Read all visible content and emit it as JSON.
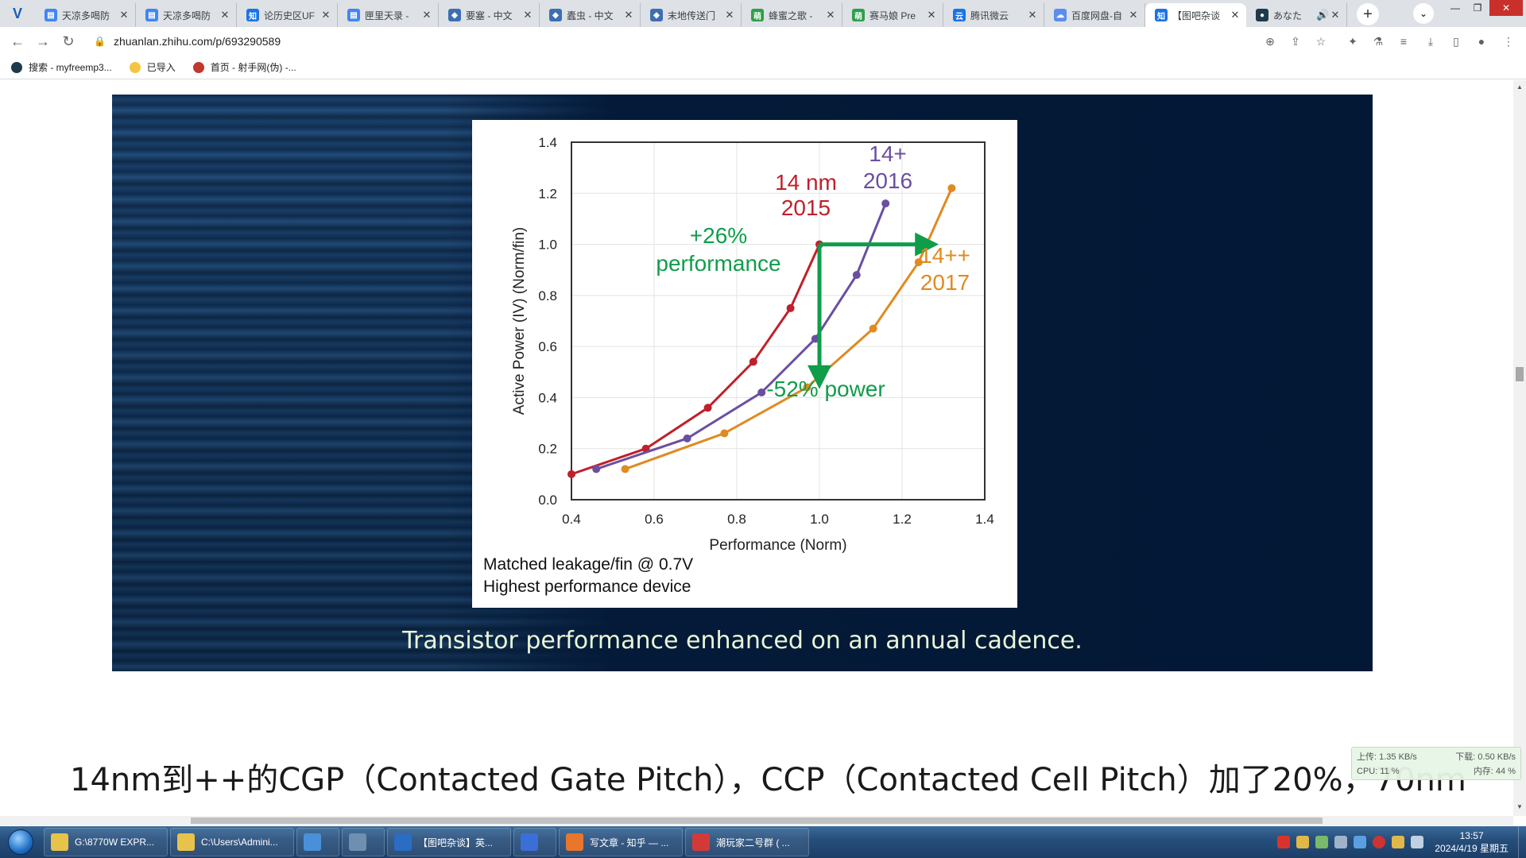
{
  "browser": {
    "tabs": [
      {
        "title": "天凉多喝防",
        "favicon_color": "#4285f4",
        "favicon_char": "▤"
      },
      {
        "title": "天凉多喝防",
        "favicon_color": "#4285f4",
        "favicon_char": "▤"
      },
      {
        "title": "论历史区UF",
        "favicon_color": "#1a73e8",
        "favicon_char": "知"
      },
      {
        "title": "匣里天录 -",
        "favicon_color": "#4285f4",
        "favicon_char": "▤"
      },
      {
        "title": "要塞 - 中文",
        "favicon_color": "#3d6fb0",
        "favicon_char": "◆"
      },
      {
        "title": "蠹虫 - 中文",
        "favicon_color": "#3d6fb0",
        "favicon_char": "◆"
      },
      {
        "title": "末地传送门",
        "favicon_color": "#3d6fb0",
        "favicon_char": "◆"
      },
      {
        "title": "蜂蜜之歌 -",
        "favicon_color": "#2e9e4a",
        "favicon_char": "萌"
      },
      {
        "title": "赛马娘 Pre",
        "favicon_color": "#2e9e4a",
        "favicon_char": "萌"
      },
      {
        "title": "腾讯微云",
        "favicon_color": "#1a73e8",
        "favicon_char": "云"
      },
      {
        "title": "百度网盘-自",
        "favicon_color": "#5b8def",
        "favicon_char": "☁"
      },
      {
        "title": "【图吧杂谈",
        "favicon_color": "#1a73e8",
        "favicon_char": "知",
        "active": true
      },
      {
        "title": "あなた",
        "favicon_color": "#1f3a4d",
        "favicon_char": "●",
        "audio": "🔊"
      }
    ],
    "new_tab": "+",
    "url": "zhuanlan.zhihu.com/p/693290589",
    "bookmarks": [
      {
        "label": "搜索 - myfreemp3...",
        "color": "#1f3a4d"
      },
      {
        "label": "已导入",
        "color": "#f4c542"
      },
      {
        "label": "首页 - 射手网(伪) -...",
        "color": "#c0392b"
      }
    ]
  },
  "slide": {
    "caption": "Transistor performance enhanced on an annual cadence.",
    "notes": [
      "Matched leakage/fin @ 0.7V",
      "Highest performance device"
    ],
    "annotations": {
      "perf_gain": [
        "+26%",
        "performance"
      ],
      "power_drop": "-52% power",
      "series_labels": [
        {
          "name": [
            "14 nm",
            "2015"
          ],
          "color": "#c0202a"
        },
        {
          "name": [
            "14+",
            "2016"
          ],
          "color": "#6a4fa0"
        },
        {
          "name": [
            "14++",
            "2017"
          ],
          "color": "#e08a20"
        }
      ],
      "arrow_color": "#0f9d4a"
    }
  },
  "chart_data": {
    "type": "line",
    "xlabel": "Performance (Norm)",
    "ylabel": "Active Power (IV) (Norm/fin)",
    "xlim": [
      0.4,
      1.4
    ],
    "ylim": [
      0.0,
      1.4
    ],
    "xticks": [
      "0.4",
      "0.6",
      "0.8",
      "1.0",
      "1.2",
      "1.4"
    ],
    "yticks": [
      "0.0",
      "0.2",
      "0.4",
      "0.6",
      "0.8",
      "1.0",
      "1.2",
      "1.4"
    ],
    "grid": true,
    "series": [
      {
        "name": "14 nm 2015",
        "color": "#c0202a",
        "x": [
          0.4,
          0.58,
          0.73,
          0.84,
          0.93,
          1.0
        ],
        "y": [
          0.1,
          0.2,
          0.36,
          0.54,
          0.75,
          1.0
        ]
      },
      {
        "name": "14+ 2016",
        "color": "#6a4fa0",
        "x": [
          0.46,
          0.68,
          0.86,
          0.99,
          1.09,
          1.16
        ],
        "y": [
          0.12,
          0.24,
          0.42,
          0.63,
          0.88,
          1.16
        ]
      },
      {
        "name": "14++ 2017",
        "color": "#e08a20",
        "x": [
          0.53,
          0.77,
          0.97,
          1.13,
          1.24,
          1.32
        ],
        "y": [
          0.12,
          0.26,
          0.44,
          0.67,
          0.93,
          1.22
        ]
      }
    ],
    "arrows": [
      {
        "from": [
          1.0,
          1.0
        ],
        "to": [
          1.26,
          1.0
        ]
      },
      {
        "from": [
          1.0,
          1.0
        ],
        "to": [
          1.0,
          0.48
        ]
      }
    ]
  },
  "article": {
    "text": "14nm到++的CGP（Contacted Gate Pitch），CCP（Contacted Cell Pitch）加了20%，70nm"
  },
  "netmon": {
    "upload": "上传: 1.35 KB/s",
    "download": "下载: 0.50 KB/s",
    "cpu": "CPU: 11 %",
    "memory": "内存: 44 %"
  },
  "taskbar": {
    "items": [
      {
        "label": "G:\\8770W EXPR...",
        "color": "#e8c34a"
      },
      {
        "label": "C:\\Users\\Admini...",
        "color": "#e8c34a"
      },
      {
        "label": "",
        "color": "#4a90d9"
      },
      {
        "label": "",
        "color": "#6f8fb0"
      },
      {
        "label": "【图吧杂谈】英...",
        "color": "#2b6cc4"
      },
      {
        "label": "",
        "color": "#3b6fd8"
      },
      {
        "label": "写文章 - 知乎 — ...",
        "color": "#e8762c"
      },
      {
        "label": "潮玩家二号群 ( ...",
        "color": "#d23a3a"
      }
    ],
    "time": "13:57",
    "date": "2024/4/19 星期五"
  }
}
